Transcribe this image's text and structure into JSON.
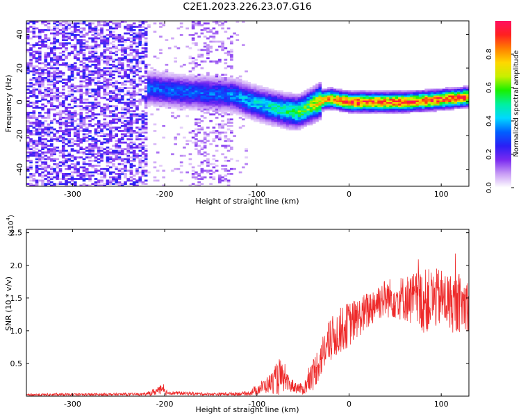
{
  "title": "C2E1.2023.226.23.07.G16",
  "chart_data": [
    {
      "type": "heatmap",
      "xlabel": "Height of straight line (km)",
      "ylabel": "Frequency (Hz)",
      "xlim": [
        -350,
        130
      ],
      "ylim": [
        -50,
        48
      ],
      "x_ticks": [
        -300,
        -200,
        -100,
        0,
        100
      ],
      "y_ticks": [
        -40,
        -20,
        0,
        20,
        40
      ],
      "colorbar": {
        "label": "Normalized spectral amplitude",
        "range": [
          0.0,
          1.0
        ],
        "ticks": [
          0.0,
          0.2,
          0.4,
          0.6,
          0.8
        ],
        "tick_labels": [
          "0.0",
          "0.2",
          "0.4",
          "0.6",
          "0.8"
        ],
        "colors": [
          "#ffffff",
          "#c89cf5",
          "#7a2af0",
          "#2a1ff5",
          "#0060ff",
          "#00d8ff",
          "#00f0a0",
          "#19f000",
          "#c8f000",
          "#ffd700",
          "#ff8000",
          "#ff2020",
          "#ff1060"
        ]
      },
      "noise_region_x": [
        -350,
        -220
      ],
      "sparse_noise_x": [
        -170,
        -125
      ],
      "ridge": {
        "x": [
          -215,
          -180,
          -150,
          -125,
          -105,
          -85,
          -70,
          -55,
          -40,
          -30,
          -20,
          0,
          30,
          60,
          90,
          110,
          130
        ],
        "freq": [
          8,
          6,
          5,
          4,
          0,
          -3,
          -5,
          -6,
          -2,
          1,
          2,
          0,
          0,
          0,
          1,
          2,
          3
        ],
        "amplitude": [
          0.35,
          0.35,
          0.35,
          0.38,
          0.45,
          0.5,
          0.55,
          0.6,
          0.7,
          0.85,
          0.9,
          0.95,
          0.95,
          0.95,
          0.95,
          0.95,
          0.95
        ]
      },
      "grid": false
    },
    {
      "type": "line",
      "xlabel": "Height of straight line (km)",
      "ylabel": "SNR (10 * v/v)",
      "y_multiplier_label": "(x10",
      "y_multiplier_exponent": "4",
      "xlim": [
        -350,
        130
      ],
      "ylim": [
        0,
        2.55
      ],
      "x_ticks": [
        -300,
        -200,
        -100,
        0,
        100
      ],
      "y_ticks": [
        0.5,
        1.0,
        1.5,
        2.0,
        2.5
      ],
      "y_tick_labels": [
        "0.5",
        "1.0",
        "1.5",
        "2.0",
        "2.5"
      ],
      "color": "#ee2a2a",
      "envelope": {
        "x": [
          -350,
          -220,
          -205,
          -195,
          -150,
          -110,
          -100,
          -85,
          -75,
          -70,
          -60,
          -50,
          -40,
          -30,
          -20,
          -10,
          0,
          10,
          20,
          30,
          40,
          60,
          80,
          100,
          115,
          130
        ],
        "y_mean": [
          0.02,
          0.03,
          0.09,
          0.05,
          0.03,
          0.04,
          0.1,
          0.2,
          0.3,
          0.22,
          0.15,
          0.1,
          0.3,
          0.6,
          0.85,
          1.0,
          1.1,
          1.2,
          1.3,
          1.45,
          1.5,
          1.5,
          1.45,
          1.5,
          1.4,
          1.4
        ],
        "y_spread": [
          0.02,
          0.02,
          0.08,
          0.03,
          0.02,
          0.03,
          0.08,
          0.15,
          0.3,
          0.15,
          0.1,
          0.08,
          0.25,
          0.3,
          0.35,
          0.35,
          0.35,
          0.3,
          0.3,
          0.3,
          0.3,
          0.35,
          0.5,
          0.45,
          0.45,
          0.4
        ]
      },
      "grid": false
    }
  ]
}
